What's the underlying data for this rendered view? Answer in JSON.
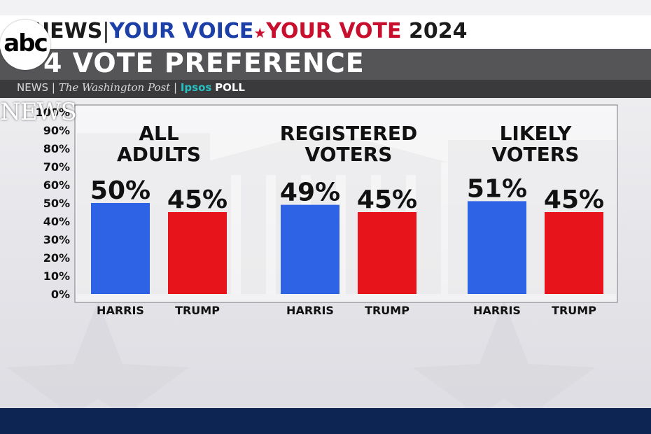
{
  "header": {
    "news": "NEWS",
    "separator": "|",
    "your_voice": "YOUR VOICE",
    "star": "★",
    "your_vote": "YOUR VOTE",
    "year": "2024"
  },
  "title": "4 VOTE PREFERENCE",
  "sources": {
    "network": "NEWS",
    "sep": "|",
    "paper": "The Washington Post",
    "pollster": "Ipsos",
    "poll": "POLL"
  },
  "logo": {
    "text": "abc",
    "watermark": "NEWS"
  },
  "colors": {
    "harris": "#2e63e6",
    "trump": "#e8141b",
    "header_blue": "#1c3fa8",
    "header_red": "#c8102e",
    "footer": "#0d2552"
  },
  "chart_data": {
    "type": "bar",
    "ylim": [
      0,
      100
    ],
    "y_ticks": [
      "0%",
      "10%",
      "20%",
      "30%",
      "40%",
      "50%",
      "60%",
      "70%",
      "80%",
      "90%",
      "100%"
    ],
    "categories": [
      "HARRIS",
      "TRUMP"
    ],
    "groups": [
      {
        "title_lines": [
          "ALL",
          "ADULTS"
        ],
        "values": [
          50,
          45
        ],
        "labels": [
          "50%",
          "45%"
        ]
      },
      {
        "title_lines": [
          "REGISTERED",
          "VOTERS"
        ],
        "values": [
          49,
          45
        ],
        "labels": [
          "49%",
          "45%"
        ]
      },
      {
        "title_lines": [
          "LIKELY",
          "VOTERS"
        ],
        "values": [
          51,
          45
        ],
        "labels": [
          "51%",
          "45%"
        ]
      }
    ],
    "grid": false,
    "legend": "none"
  }
}
